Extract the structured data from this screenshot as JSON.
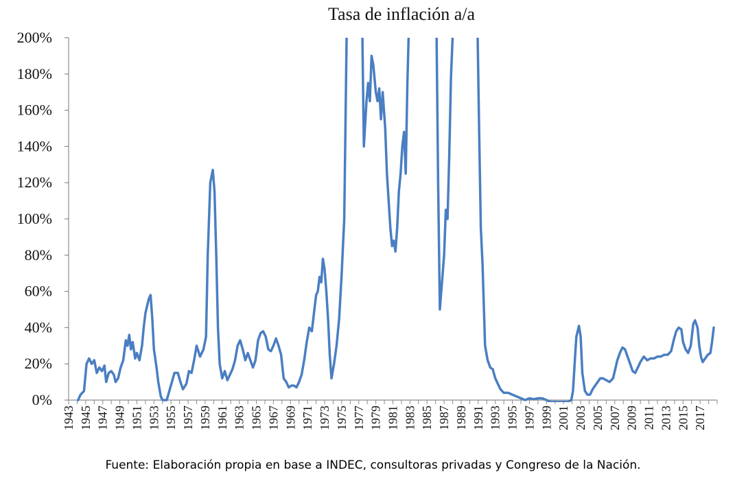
{
  "chart_data": {
    "type": "line",
    "title": "Tasa de inflación a/a",
    "source": "Fuente: Elaboración propia en base a INDEC, consultoras privadas y Congreso de la Nación.",
    "xlabel": "",
    "ylabel": "",
    "ylim": [
      0,
      200
    ],
    "y_ticks": [
      "0%",
      "20%",
      "40%",
      "60%",
      "80%",
      "100%",
      "120%",
      "140%",
      "160%",
      "180%",
      "200%"
    ],
    "x_ticks": [
      "1943",
      "1945",
      "1947",
      "1949",
      "1951",
      "1953",
      "1955",
      "1957",
      "1959",
      "1961",
      "1963",
      "1965",
      "1967",
      "1969",
      "1971",
      "1973",
      "1975",
      "1977",
      "1979",
      "1981",
      "1983",
      "1985",
      "1987",
      "1989",
      "1991",
      "1993",
      "1995",
      "1997",
      "1999",
      "2001",
      "2003",
      "2005",
      "2007",
      "2009",
      "2011",
      "2013",
      "2015",
      "2017"
    ],
    "grid": false,
    "line_color": "#4A7EC2",
    "series": [
      {
        "points": [
          [
            1944.1,
            0
          ],
          [
            1944.4,
            3
          ],
          [
            1944.8,
            5
          ],
          [
            1945.1,
            20
          ],
          [
            1945.4,
            23
          ],
          [
            1945.7,
            20
          ],
          [
            1946.0,
            22
          ],
          [
            1946.3,
            15
          ],
          [
            1946.6,
            18
          ],
          [
            1946.9,
            16
          ],
          [
            1947.2,
            19
          ],
          [
            1947.4,
            10
          ],
          [
            1947.7,
            15
          ],
          [
            1948.0,
            16
          ],
          [
            1948.3,
            14
          ],
          [
            1948.5,
            10
          ],
          [
            1948.8,
            12
          ],
          [
            1949.1,
            18
          ],
          [
            1949.4,
            22
          ],
          [
            1949.7,
            33
          ],
          [
            1949.9,
            30
          ],
          [
            1950.1,
            36
          ],
          [
            1950.3,
            28
          ],
          [
            1950.5,
            32
          ],
          [
            1950.8,
            23
          ],
          [
            1951.0,
            26
          ],
          [
            1951.3,
            22
          ],
          [
            1951.6,
            30
          ],
          [
            1951.8,
            40
          ],
          [
            1952.0,
            48
          ],
          [
            1952.2,
            52
          ],
          [
            1952.4,
            56
          ],
          [
            1952.6,
            58
          ],
          [
            1952.8,
            45
          ],
          [
            1953.0,
            28
          ],
          [
            1953.3,
            18
          ],
          [
            1953.5,
            10
          ],
          [
            1953.8,
            2
          ],
          [
            1954.0,
            0
          ],
          [
            1954.5,
            0
          ],
          [
            1954.8,
            5
          ],
          [
            1955.1,
            10
          ],
          [
            1955.4,
            15
          ],
          [
            1955.8,
            15
          ],
          [
            1956.1,
            10
          ],
          [
            1956.4,
            6
          ],
          [
            1956.8,
            9
          ],
          [
            1957.1,
            16
          ],
          [
            1957.4,
            15
          ],
          [
            1957.7,
            22
          ],
          [
            1958.0,
            30
          ],
          [
            1958.4,
            24
          ],
          [
            1958.8,
            28
          ],
          [
            1959.1,
            35
          ],
          [
            1959.3,
            80
          ],
          [
            1959.6,
            120
          ],
          [
            1959.9,
            127
          ],
          [
            1960.1,
            115
          ],
          [
            1960.3,
            80
          ],
          [
            1960.5,
            40
          ],
          [
            1960.7,
            20
          ],
          [
            1961.0,
            12
          ],
          [
            1961.3,
            16
          ],
          [
            1961.6,
            11
          ],
          [
            1961.9,
            14
          ],
          [
            1962.2,
            17
          ],
          [
            1962.5,
            22
          ],
          [
            1962.8,
            30
          ],
          [
            1963.1,
            33
          ],
          [
            1963.4,
            28
          ],
          [
            1963.7,
            22
          ],
          [
            1964.0,
            26
          ],
          [
            1964.3,
            22
          ],
          [
            1964.6,
            18
          ],
          [
            1964.9,
            22
          ],
          [
            1965.2,
            33
          ],
          [
            1965.5,
            37
          ],
          [
            1965.8,
            38
          ],
          [
            1966.1,
            35
          ],
          [
            1966.4,
            28
          ],
          [
            1966.7,
            27
          ],
          [
            1967.0,
            30
          ],
          [
            1967.3,
            34
          ],
          [
            1967.6,
            30
          ],
          [
            1967.9,
            25
          ],
          [
            1968.2,
            12
          ],
          [
            1968.5,
            10
          ],
          [
            1968.8,
            7
          ],
          [
            1969.1,
            8
          ],
          [
            1969.4,
            8
          ],
          [
            1969.7,
            7
          ],
          [
            1970.0,
            10
          ],
          [
            1970.3,
            14
          ],
          [
            1970.6,
            22
          ],
          [
            1970.9,
            32
          ],
          [
            1971.2,
            40
          ],
          [
            1971.5,
            38
          ],
          [
            1971.8,
            50
          ],
          [
            1972.0,
            58
          ],
          [
            1972.2,
            60
          ],
          [
            1972.4,
            68
          ],
          [
            1972.6,
            65
          ],
          [
            1972.8,
            78
          ],
          [
            1973.0,
            72
          ],
          [
            1973.2,
            60
          ],
          [
            1973.4,
            45
          ],
          [
            1973.6,
            25
          ],
          [
            1973.8,
            12
          ],
          [
            1974.1,
            20
          ],
          [
            1974.4,
            30
          ],
          [
            1974.7,
            45
          ],
          [
            1975.0,
            70
          ],
          [
            1975.3,
            100
          ],
          [
            1975.6,
            210
          ],
          [
            1977.4,
            210
          ],
          [
            1977.6,
            140
          ],
          [
            1977.9,
            165
          ],
          [
            1978.1,
            175
          ],
          [
            1978.3,
            165
          ],
          [
            1978.5,
            190
          ],
          [
            1978.7,
            185
          ],
          [
            1979.0,
            170
          ],
          [
            1979.2,
            165
          ],
          [
            1979.4,
            172
          ],
          [
            1979.6,
            155
          ],
          [
            1979.8,
            170
          ],
          [
            1980.1,
            150
          ],
          [
            1980.3,
            125
          ],
          [
            1980.5,
            110
          ],
          [
            1980.7,
            95
          ],
          [
            1980.9,
            85
          ],
          [
            1981.1,
            88
          ],
          [
            1981.3,
            82
          ],
          [
            1981.5,
            95
          ],
          [
            1981.7,
            115
          ],
          [
            1981.9,
            125
          ],
          [
            1982.1,
            140
          ],
          [
            1982.3,
            148
          ],
          [
            1982.5,
            125
          ],
          [
            1982.7,
            175
          ],
          [
            1982.9,
            210
          ],
          [
            1986.1,
            210
          ],
          [
            1986.3,
            120
          ],
          [
            1986.5,
            50
          ],
          [
            1986.7,
            62
          ],
          [
            1987.0,
            80
          ],
          [
            1987.2,
            105
          ],
          [
            1987.4,
            100
          ],
          [
            1987.6,
            135
          ],
          [
            1987.8,
            178
          ],
          [
            1988.0,
            200
          ],
          [
            1988.3,
            210
          ],
          [
            1990.9,
            210
          ],
          [
            1991.1,
            150
          ],
          [
            1991.3,
            95
          ],
          [
            1991.5,
            75
          ],
          [
            1991.8,
            30
          ],
          [
            1992.1,
            22
          ],
          [
            1992.4,
            18
          ],
          [
            1992.7,
            17
          ],
          [
            1993.0,
            12
          ],
          [
            1993.3,
            9
          ],
          [
            1993.6,
            6
          ],
          [
            1994.0,
            4
          ],
          [
            1994.5,
            4
          ],
          [
            1995.0,
            3
          ],
          [
            1995.5,
            2
          ],
          [
            1996.0,
            1
          ],
          [
            1996.5,
            0
          ],
          [
            1997.0,
            1
          ],
          [
            1997.5,
            0.5
          ],
          [
            1998.0,
            1
          ],
          [
            1998.5,
            1
          ],
          [
            1999.0,
            0
          ],
          [
            1999.5,
            -1
          ],
          [
            2000.0,
            -1
          ],
          [
            2000.5,
            -1
          ],
          [
            2001.0,
            -1
          ],
          [
            2001.5,
            -1
          ],
          [
            2001.9,
            0
          ],
          [
            2002.1,
            5
          ],
          [
            2002.3,
            20
          ],
          [
            2002.5,
            35
          ],
          [
            2002.8,
            41
          ],
          [
            2003.0,
            35
          ],
          [
            2003.2,
            15
          ],
          [
            2003.5,
            5
          ],
          [
            2003.8,
            3
          ],
          [
            2004.1,
            3
          ],
          [
            2004.4,
            6
          ],
          [
            2004.7,
            8
          ],
          [
            2005.0,
            10
          ],
          [
            2005.3,
            12
          ],
          [
            2005.6,
            12
          ],
          [
            2006.0,
            11
          ],
          [
            2006.4,
            10
          ],
          [
            2006.8,
            12
          ],
          [
            2007.0,
            16
          ],
          [
            2007.3,
            22
          ],
          [
            2007.6,
            26
          ],
          [
            2007.9,
            29
          ],
          [
            2008.2,
            28
          ],
          [
            2008.5,
            24
          ],
          [
            2008.8,
            20
          ],
          [
            2009.1,
            16
          ],
          [
            2009.4,
            15
          ],
          [
            2009.7,
            18
          ],
          [
            2010.0,
            21
          ],
          [
            2010.4,
            24
          ],
          [
            2010.8,
            22
          ],
          [
            2011.2,
            23
          ],
          [
            2011.6,
            23
          ],
          [
            2012.0,
            24
          ],
          [
            2012.4,
            24
          ],
          [
            2012.8,
            25
          ],
          [
            2013.2,
            25
          ],
          [
            2013.6,
            27
          ],
          [
            2013.9,
            33
          ],
          [
            2014.2,
            38
          ],
          [
            2014.5,
            40
          ],
          [
            2014.8,
            39
          ],
          [
            2015.0,
            32
          ],
          [
            2015.3,
            28
          ],
          [
            2015.6,
            26
          ],
          [
            2015.9,
            30
          ],
          [
            2016.2,
            42
          ],
          [
            2016.4,
            44
          ],
          [
            2016.7,
            40
          ],
          [
            2016.9,
            30
          ],
          [
            2017.1,
            24
          ],
          [
            2017.3,
            21
          ],
          [
            2017.6,
            23
          ],
          [
            2017.9,
            25
          ],
          [
            2018.2,
            26
          ],
          [
            2018.4,
            32
          ],
          [
            2018.6,
            40
          ]
        ]
      }
    ]
  }
}
